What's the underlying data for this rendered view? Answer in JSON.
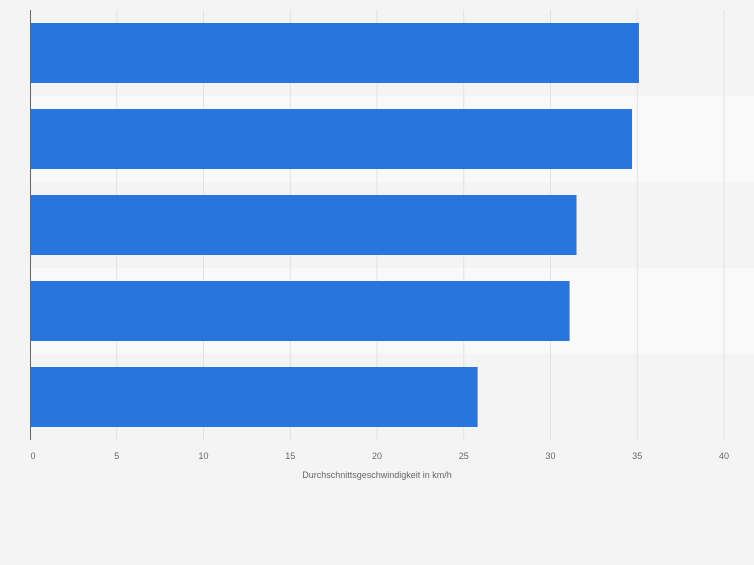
{
  "chart_data": {
    "type": "bar",
    "orientation": "horizontal",
    "categories": [
      "",
      "",
      "",
      "",
      ""
    ],
    "values": [
      35.1,
      34.7,
      31.5,
      31.1,
      25.8
    ],
    "title": "",
    "xlabel": "Durchschnittsgeschwindigkeit in km/h",
    "ylabel": "",
    "xlim": [
      0,
      40
    ],
    "xticks": [
      "0",
      "5",
      "10",
      "15",
      "20",
      "25",
      "30",
      "35",
      "40"
    ],
    "grid": true,
    "legend": "none"
  },
  "colors": {
    "bar": "#2876dd",
    "background": "#f4f4f4",
    "band_alt": "#f9f9f9",
    "grid": "#e1e1e1",
    "axis": "#666666",
    "tick_text": "#666666"
  }
}
